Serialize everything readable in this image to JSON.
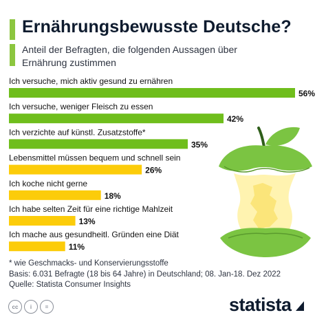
{
  "title": "Ernährungsbewusste Deutsche?",
  "subtitle": "Anteil der Befragten, die folgenden Aussagen über Ernährung zustimmen",
  "chart_data": {
    "type": "bar",
    "orientation": "horizontal",
    "categories": [
      "Ich versuche, mich aktiv gesund zu ernähren",
      "Ich versuche, weniger Fleisch zu essen",
      "Ich verzichte auf künstl. Zusatzstoffe*",
      "Lebensmittel müssen bequem und schnell sein",
      "Ich koche nicht gerne",
      "Ich habe selten Zeit für eine richtige Mahlzeit",
      "Ich mache aus gesundheitl. Gründen eine Diät"
    ],
    "values": [
      56,
      42,
      35,
      26,
      18,
      13,
      11
    ],
    "value_labels": [
      "56%",
      "42%",
      "35%",
      "26%",
      "18%",
      "13%",
      "11%"
    ],
    "bar_colors": [
      "#6fbe1c",
      "#6fbe1c",
      "#6fbe1c",
      "#fccc0a",
      "#fccc0a",
      "#fccc0a",
      "#fccc0a"
    ],
    "unit": "%"
  },
  "footnotes": {
    "note": "* wie Geschmacks- und Konservierungsstoffe",
    "basis": "Basis: 6.031 Befragte (18 bis 64 Jahre) in Deutschland; 08. Jan-18. Dez 2022",
    "source": "Quelle: Statista Consumer Insights"
  },
  "license_icons": [
    "cc-icon",
    "attribution-icon",
    "equals-icon"
  ],
  "license_text": [
    "cc",
    "i",
    "="
  ],
  "logo": {
    "text": "statista"
  },
  "colors": {
    "green": "#6fbe1c",
    "yellow": "#fccc0a",
    "accent": "#8cc63f",
    "dark": "#0e1b2e"
  }
}
